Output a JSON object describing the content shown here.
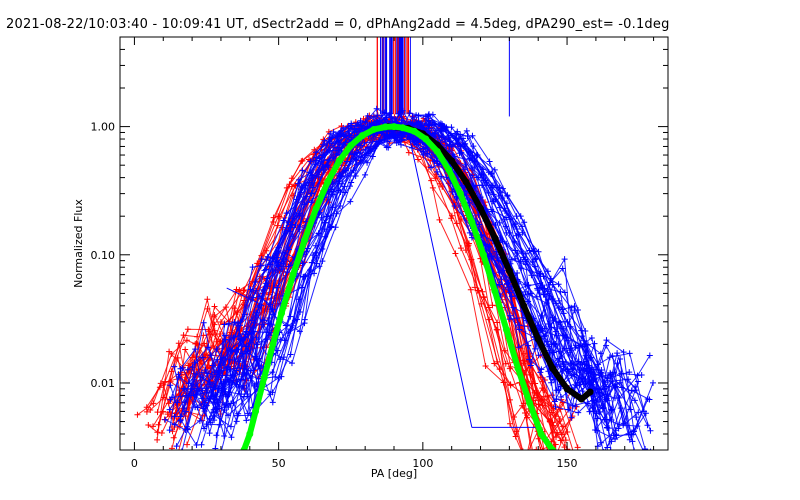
{
  "title": "2021-08-22/10:03:40 - 10:09:41 UT, dSectr2add = 0, dPhAng2add = 4.5deg, dPA290_est= -0.1deg",
  "chart_data": {
    "type": "line",
    "xlabel": "PA [deg]",
    "ylabel": "Normalized Flux",
    "xlim": [
      -5,
      185
    ],
    "ylim": [
      0.003,
      5
    ],
    "yscale": "log",
    "xticks": [
      0,
      50,
      100,
      150
    ],
    "xtick_labels": [
      "0",
      "50",
      "100",
      "150"
    ],
    "yticks": [
      0.01,
      0.1,
      1.0
    ],
    "ytick_labels": [
      "0.01",
      "0.10",
      "1.00"
    ],
    "grid": false,
    "legend": "none",
    "colors": {
      "red_series": "#ff0000",
      "blue_series": "#0000ff",
      "black_fit": "#000000",
      "green_fit": "#00ff00",
      "axes": "#000000"
    },
    "series": [
      {
        "color": "red",
        "marker": "plus",
        "points": [
          [
            10,
            0.006
          ],
          [
            15,
            0.009
          ],
          [
            20,
            0.012
          ],
          [
            25,
            0.016
          ],
          [
            30,
            0.02
          ],
          [
            35,
            0.022
          ],
          [
            40,
            0.03
          ],
          [
            45,
            0.05
          ],
          [
            50,
            0.09
          ],
          [
            55,
            0.17
          ],
          [
            60,
            0.32
          ],
          [
            65,
            0.5
          ],
          [
            70,
            0.68
          ],
          [
            75,
            0.82
          ],
          [
            80,
            0.92
          ],
          [
            85,
            0.98
          ],
          [
            90,
            1.0
          ],
          [
            95,
            0.95
          ],
          [
            100,
            0.8
          ],
          [
            105,
            0.6
          ],
          [
            110,
            0.4
          ],
          [
            115,
            0.22
          ],
          [
            120,
            0.11
          ],
          [
            125,
            0.05
          ],
          [
            130,
            0.02
          ],
          [
            135,
            0.009
          ],
          [
            140,
            0.005
          ],
          [
            145,
            0.004
          ]
        ]
      },
      {
        "color": "blue",
        "marker": "plus",
        "points": [
          [
            20,
            0.006
          ],
          [
            25,
            0.008
          ],
          [
            30,
            0.01
          ],
          [
            35,
            0.012
          ],
          [
            40,
            0.015
          ],
          [
            45,
            0.02
          ],
          [
            50,
            0.04
          ],
          [
            55,
            0.09
          ],
          [
            60,
            0.18
          ],
          [
            65,
            0.33
          ],
          [
            70,
            0.52
          ],
          [
            75,
            0.72
          ],
          [
            80,
            0.87
          ],
          [
            85,
            0.96
          ],
          [
            90,
            1.0
          ],
          [
            95,
            0.99
          ],
          [
            100,
            0.92
          ],
          [
            105,
            0.8
          ],
          [
            110,
            0.62
          ],
          [
            115,
            0.44
          ],
          [
            120,
            0.28
          ],
          [
            125,
            0.17
          ],
          [
            130,
            0.1
          ],
          [
            135,
            0.06
          ],
          [
            140,
            0.035
          ],
          [
            145,
            0.022
          ],
          [
            150,
            0.015
          ],
          [
            155,
            0.011
          ],
          [
            160,
            0.009
          ],
          [
            165,
            0.007
          ],
          [
            170,
            0.006
          ]
        ]
      },
      {
        "color": "black",
        "marker": "dot",
        "points": [
          [
            88,
            1.0
          ],
          [
            95,
            0.97
          ],
          [
            100,
            0.88
          ],
          [
            105,
            0.72
          ],
          [
            110,
            0.54
          ],
          [
            115,
            0.37
          ],
          [
            120,
            0.23
          ],
          [
            125,
            0.135
          ],
          [
            130,
            0.075
          ],
          [
            135,
            0.04
          ],
          [
            140,
            0.022
          ],
          [
            145,
            0.013
          ],
          [
            150,
            0.009
          ],
          [
            155,
            0.0075
          ],
          [
            158,
            0.0085
          ]
        ]
      },
      {
        "color": "green",
        "marker": "dot",
        "points": [
          [
            38,
            0.003
          ],
          [
            40,
            0.004
          ],
          [
            42,
            0.006
          ],
          [
            45,
            0.011
          ],
          [
            48,
            0.02
          ],
          [
            51,
            0.035
          ],
          [
            55,
            0.07
          ],
          [
            59,
            0.13
          ],
          [
            63,
            0.23
          ],
          [
            67,
            0.37
          ],
          [
            71,
            0.54
          ],
          [
            75,
            0.71
          ],
          [
            79,
            0.85
          ],
          [
            83,
            0.95
          ],
          [
            87,
            0.995
          ],
          [
            90,
            1.0
          ],
          [
            93,
            0.98
          ],
          [
            97,
            0.92
          ],
          [
            101,
            0.8
          ],
          [
            105,
            0.64
          ],
          [
            109,
            0.46
          ],
          [
            113,
            0.3
          ],
          [
            117,
            0.18
          ],
          [
            121,
            0.1
          ],
          [
            125,
            0.052
          ],
          [
            129,
            0.026
          ],
          [
            133,
            0.013
          ],
          [
            137,
            0.007
          ],
          [
            141,
            0.004
          ],
          [
            145,
            0.003
          ]
        ]
      }
    ]
  }
}
